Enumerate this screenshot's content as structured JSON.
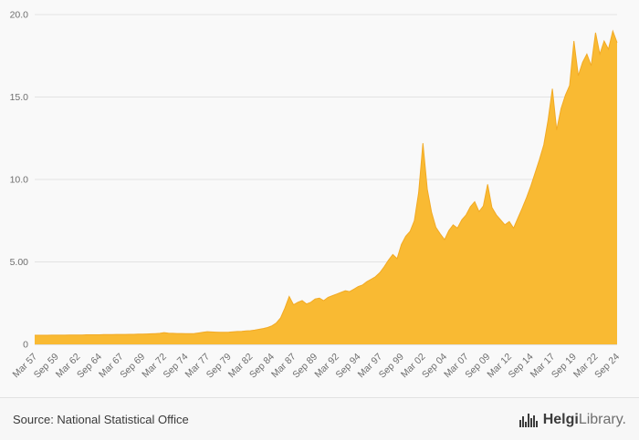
{
  "chart_data": {
    "type": "area",
    "title": "",
    "xlabel": "",
    "ylabel": "",
    "ylim": [
      0,
      20
    ],
    "y_ticks": [
      0,
      5,
      10,
      15,
      20
    ],
    "y_tick_labels": [
      "0",
      "5.00",
      "10.0",
      "15.0",
      "20.0"
    ],
    "grid": true,
    "legend": "none",
    "tick_every": 5,
    "x_tick_labels": [
      "Mar 57",
      "Sep 59",
      "Mar 62",
      "Sep 64",
      "Mar 67",
      "Sep 69",
      "Mar 72",
      "Sep 74",
      "Mar 77",
      "Sep 79",
      "Mar 82",
      "Sep 84",
      "Mar 87",
      "Sep 89",
      "Mar 92",
      "Sep 94",
      "Mar 97",
      "Sep 99",
      "Mar 02",
      "Sep 04",
      "Mar 07",
      "Sep 09",
      "Mar 12",
      "Sep 14",
      "Mar 17",
      "Sep 19",
      "Mar 22",
      "Sep 24"
    ],
    "x_frequency": "semiannual (Mar/Sep), Mar 1957 - Sep 2024",
    "values": [
      0.55,
      0.55,
      0.55,
      0.55,
      0.56,
      0.56,
      0.56,
      0.56,
      0.57,
      0.57,
      0.57,
      0.57,
      0.58,
      0.58,
      0.58,
      0.58,
      0.59,
      0.59,
      0.59,
      0.6,
      0.6,
      0.6,
      0.61,
      0.61,
      0.62,
      0.62,
      0.63,
      0.64,
      0.65,
      0.67,
      0.71,
      0.68,
      0.67,
      0.66,
      0.66,
      0.65,
      0.65,
      0.66,
      0.69,
      0.73,
      0.77,
      0.75,
      0.74,
      0.73,
      0.73,
      0.74,
      0.76,
      0.78,
      0.79,
      0.81,
      0.83,
      0.86,
      0.91,
      0.96,
      1.02,
      1.12,
      1.3,
      1.6,
      2.2,
      2.9,
      2.4,
      2.55,
      2.65,
      2.45,
      2.55,
      2.75,
      2.8,
      2.65,
      2.85,
      2.95,
      3.05,
      3.15,
      3.25,
      3.2,
      3.35,
      3.5,
      3.6,
      3.8,
      3.95,
      4.1,
      4.35,
      4.7,
      5.1,
      5.45,
      5.2,
      6.05,
      6.55,
      6.85,
      7.5,
      9.2,
      12.2,
      9.4,
      8.0,
      7.1,
      6.7,
      6.35,
      6.9,
      7.25,
      7.05,
      7.55,
      7.85,
      8.35,
      8.65,
      8.05,
      8.4,
      9.7,
      8.3,
      7.85,
      7.55,
      7.25,
      7.45,
      7.05,
      7.65,
      8.25,
      8.9,
      9.6,
      10.4,
      11.2,
      12.1,
      13.6,
      15.5,
      13.0,
      14.3,
      15.1,
      15.7,
      18.4,
      16.3,
      17.1,
      17.6,
      16.9,
      18.9,
      17.6,
      18.4,
      17.9,
      19.0,
      18.3
    ],
    "fill_color": "#F9BA33",
    "stroke_color": "#F2AA24",
    "grid_color": "#e3e3e3",
    "baseline_color": "#c9c9c9",
    "axis_label_color": "#6e6e6e",
    "background": "#f9f9f9"
  },
  "footer": {
    "source": "Source: National Statistical Office",
    "logo": {
      "brand_bold": "Helgi",
      "brand_light": "Library.",
      "icon": "bar-chart-logo-icon",
      "icon_color": "#3b3b3b"
    }
  }
}
